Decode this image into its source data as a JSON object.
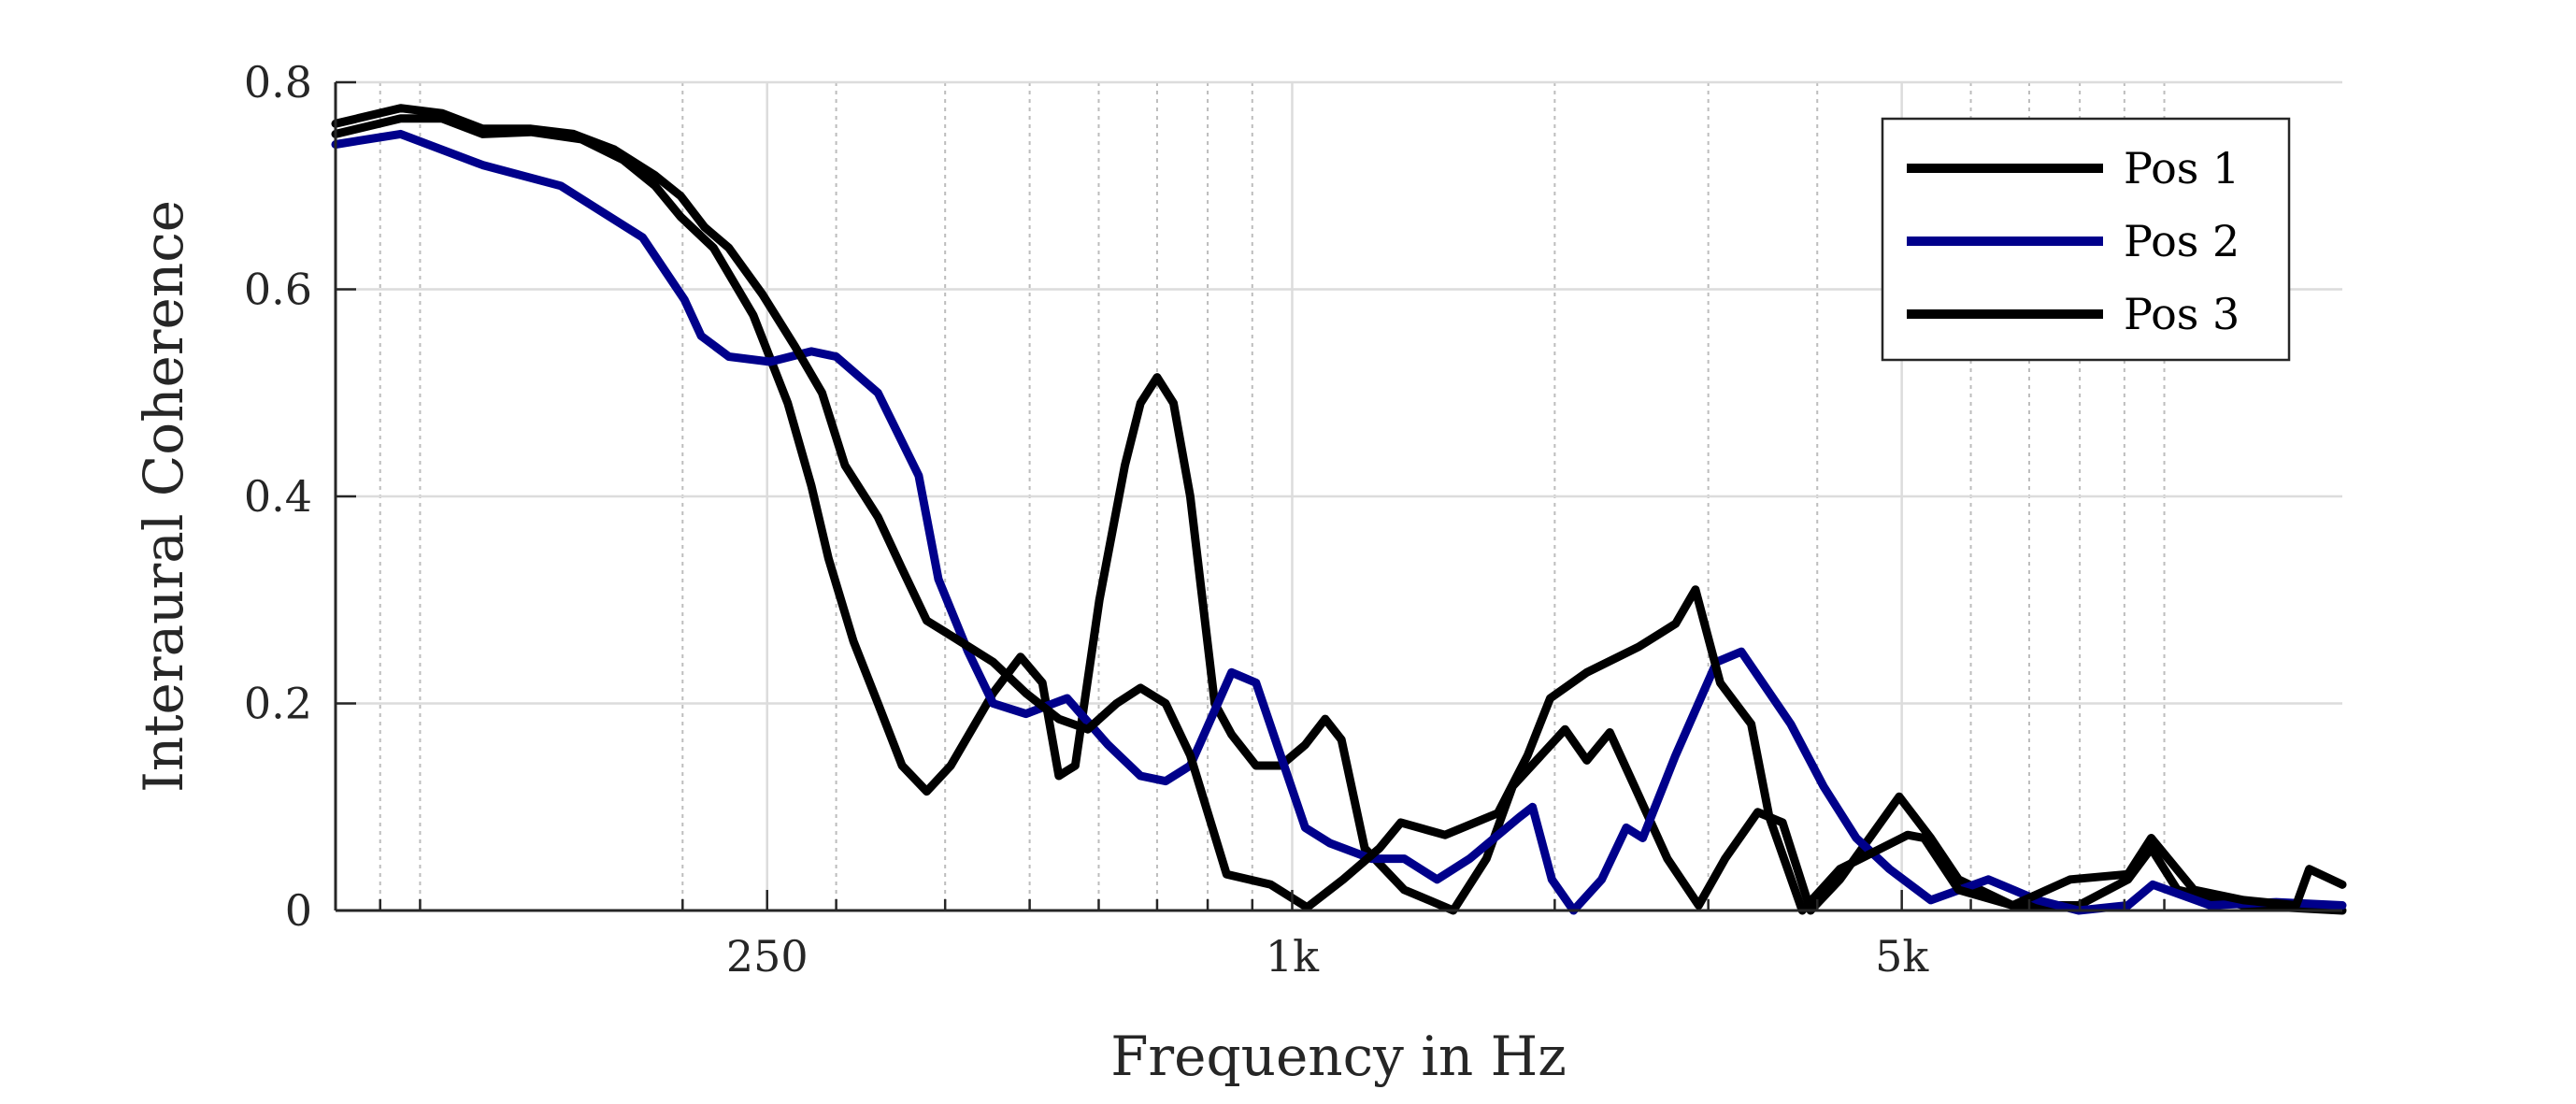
{
  "chart_data": {
    "type": "line",
    "title": "",
    "xlabel": "Frequency in Hz",
    "ylabel": "Interaural Coherence",
    "xscale": "log",
    "xlim": [
      80,
      16000
    ],
    "ylim": [
      0,
      0.8
    ],
    "grid": true,
    "legend_position": "top-right",
    "yticks": [
      0,
      0.2,
      0.4,
      0.6,
      0.8
    ],
    "ytick_labels": [
      "0",
      "0.2",
      "0.4",
      "0.6",
      "0.8"
    ],
    "xticks": [
      250,
      1000,
      5000
    ],
    "xtick_labels": [
      "250",
      "1k",
      "5k"
    ],
    "x_minor_grid": [
      90,
      100,
      200,
      300,
      400,
      500,
      600,
      700,
      800,
      900,
      2000,
      3000,
      4000,
      6000,
      7000,
      8000,
      9000,
      10000
    ],
    "series": [
      {
        "name": "Pos 1",
        "color": "#000000",
        "points": [
          [
            80,
            0.75
          ],
          [
            95,
            0.765
          ],
          [
            106,
            0.765
          ],
          [
            118,
            0.75
          ],
          [
            134,
            0.752
          ],
          [
            153,
            0.745
          ],
          [
            171,
            0.725
          ],
          [
            186,
            0.7
          ],
          [
            199,
            0.67
          ],
          [
            217,
            0.64
          ],
          [
            241,
            0.575
          ],
          [
            264,
            0.49
          ],
          [
            281,
            0.41
          ],
          [
            294,
            0.34
          ],
          [
            314,
            0.26
          ],
          [
            335,
            0.2
          ],
          [
            357,
            0.14
          ],
          [
            381,
            0.115
          ],
          [
            406,
            0.14
          ],
          [
            454,
            0.21
          ],
          [
            488,
            0.245
          ],
          [
            517,
            0.22
          ],
          [
            540,
            0.13
          ],
          [
            564,
            0.14
          ],
          [
            601,
            0.3
          ],
          [
            643,
            0.43
          ],
          [
            670,
            0.49
          ],
          [
            700,
            0.515
          ],
          [
            731,
            0.49
          ],
          [
            764,
            0.4
          ],
          [
            815,
            0.2
          ],
          [
            852,
            0.17
          ],
          [
            909,
            0.14
          ],
          [
            970,
            0.14
          ],
          [
            1035,
            0.16
          ],
          [
            1091,
            0.185
          ],
          [
            1139,
            0.165
          ],
          [
            1211,
            0.06
          ],
          [
            1344,
            0.02
          ],
          [
            1434,
            0.01
          ],
          [
            1530,
            0.0
          ],
          [
            1670,
            0.05
          ],
          [
            1790,
            0.12
          ],
          [
            2055,
            0.175
          ],
          [
            2177,
            0.145
          ],
          [
            2313,
            0.172
          ],
          [
            2469,
            0.12
          ],
          [
            2693,
            0.05
          ],
          [
            2925,
            0.005
          ],
          [
            3136,
            0.05
          ],
          [
            3418,
            0.095
          ],
          [
            3650,
            0.085
          ],
          [
            3930,
            0.0
          ],
          [
            4247,
            0.03
          ],
          [
            4966,
            0.11
          ],
          [
            5398,
            0.07
          ],
          [
            5808,
            0.03
          ],
          [
            6703,
            0.005
          ],
          [
            7976,
            0.005
          ],
          [
            9085,
            0.03
          ],
          [
            9660,
            0.06
          ],
          [
            10350,
            0.02
          ],
          [
            12320,
            0.005
          ],
          [
            16000,
            0.0
          ]
        ]
      },
      {
        "name": "Pos 2",
        "color": "#00008B",
        "points": [
          [
            80,
            0.74
          ],
          [
            95,
            0.75
          ],
          [
            118,
            0.72
          ],
          [
            145,
            0.7
          ],
          [
            180,
            0.65
          ],
          [
            201,
            0.59
          ],
          [
            210,
            0.555
          ],
          [
            226,
            0.535
          ],
          [
            252,
            0.53
          ],
          [
            281,
            0.54
          ],
          [
            300,
            0.535
          ],
          [
            335,
            0.5
          ],
          [
            373,
            0.42
          ],
          [
            393,
            0.32
          ],
          [
            425,
            0.25
          ],
          [
            454,
            0.2
          ],
          [
            495,
            0.19
          ],
          [
            552,
            0.205
          ],
          [
            615,
            0.16
          ],
          [
            670,
            0.13
          ],
          [
            716,
            0.125
          ],
          [
            764,
            0.14
          ],
          [
            852,
            0.23
          ],
          [
            909,
            0.22
          ],
          [
            970,
            0.15
          ],
          [
            1035,
            0.08
          ],
          [
            1105,
            0.065
          ],
          [
            1232,
            0.05
          ],
          [
            1344,
            0.05
          ],
          [
            1466,
            0.03
          ],
          [
            1598,
            0.05
          ],
          [
            1821,
            0.09
          ],
          [
            1886,
            0.1
          ],
          [
            1985,
            0.03
          ],
          [
            2102,
            0.0
          ],
          [
            2264,
            0.03
          ],
          [
            2416,
            0.08
          ],
          [
            2523,
            0.07
          ],
          [
            2752,
            0.15
          ],
          [
            3067,
            0.24
          ],
          [
            3273,
            0.25
          ],
          [
            3730,
            0.18
          ],
          [
            4066,
            0.12
          ],
          [
            4434,
            0.07
          ],
          [
            4840,
            0.04
          ],
          [
            5398,
            0.01
          ],
          [
            6283,
            0.03
          ],
          [
            7155,
            0.01
          ],
          [
            7976,
            0.0
          ],
          [
            9085,
            0.005
          ],
          [
            9700,
            0.025
          ],
          [
            11290,
            0.005
          ],
          [
            13440,
            0.008
          ],
          [
            16000,
            0.005
          ]
        ]
      },
      {
        "name": "Pos 3",
        "color": "#000000",
        "points": [
          [
            80,
            0.76
          ],
          [
            95,
            0.775
          ],
          [
            106,
            0.77
          ],
          [
            118,
            0.755
          ],
          [
            134,
            0.755
          ],
          [
            150,
            0.75
          ],
          [
            167,
            0.735
          ],
          [
            186,
            0.71
          ],
          [
            199,
            0.69
          ],
          [
            212,
            0.66
          ],
          [
            226,
            0.64
          ],
          [
            247,
            0.595
          ],
          [
            269,
            0.545
          ],
          [
            289,
            0.5
          ],
          [
            307,
            0.43
          ],
          [
            335,
            0.38
          ],
          [
            357,
            0.33
          ],
          [
            381,
            0.28
          ],
          [
            416,
            0.26
          ],
          [
            454,
            0.24
          ],
          [
            495,
            0.21
          ],
          [
            540,
            0.185
          ],
          [
            583,
            0.175
          ],
          [
            629,
            0.2
          ],
          [
            670,
            0.215
          ],
          [
            716,
            0.2
          ],
          [
            764,
            0.15
          ],
          [
            841,
            0.035
          ],
          [
            945,
            0.025
          ],
          [
            1040,
            0.003
          ],
          [
            1144,
            0.03
          ],
          [
            1259,
            0.06
          ],
          [
            1332,
            0.085
          ],
          [
            1497,
            0.073
          ],
          [
            1721,
            0.094
          ],
          [
            1862,
            0.15
          ],
          [
            1976,
            0.205
          ],
          [
            2177,
            0.23
          ],
          [
            2500,
            0.255
          ],
          [
            2752,
            0.277
          ],
          [
            2900,
            0.31
          ],
          [
            3096,
            0.22
          ],
          [
            3360,
            0.18
          ],
          [
            3525,
            0.09
          ],
          [
            3845,
            0.0
          ],
          [
            4247,
            0.04
          ],
          [
            5079,
            0.073
          ],
          [
            5304,
            0.07
          ],
          [
            5808,
            0.02
          ],
          [
            6703,
            0.005
          ],
          [
            7800,
            0.03
          ],
          [
            9085,
            0.035
          ],
          [
            9660,
            0.07
          ],
          [
            10810,
            0.02
          ],
          [
            12320,
            0.01
          ],
          [
            14160,
            0.005
          ],
          [
            14660,
            0.04
          ],
          [
            16000,
            0.025
          ]
        ]
      }
    ]
  }
}
